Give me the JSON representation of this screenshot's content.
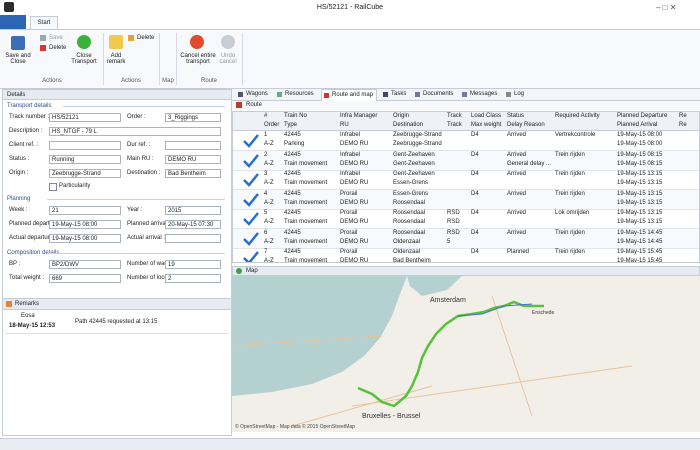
{
  "window": {
    "title": "HS/52121 - RailCube"
  },
  "ribbon": {
    "tab": "Start",
    "groups": [
      {
        "label": "Actions",
        "buttons": [
          "Save and Close",
          "Save",
          "Delete",
          "Close Transport"
        ]
      },
      {
        "label": "Actions",
        "buttons": [
          "Add remark",
          "Delete"
        ]
      },
      {
        "label": "Map"
      },
      {
        "label": "Route",
        "buttons": [
          "Cancel entire transport",
          "Undo cancel"
        ]
      }
    ]
  },
  "details": {
    "title": "Details",
    "sections": [
      {
        "title": "Transport details",
        "rows": [
          [
            {
              "label": "Track number :",
              "value": "HS/52121"
            },
            {
              "label": "Order :",
              "value": "3_Riggings"
            }
          ],
          [
            {
              "label": "Description :",
              "value": "HS_NTGF - 79 L"
            }
          ],
          [
            {
              "label": "Client ref. :"
            },
            {
              "label": "Dur ref. :"
            }
          ],
          [
            {
              "label": "Status :",
              "value": "Running"
            },
            {
              "label": "Main RU :",
              "value": "DEMO RU"
            }
          ],
          [
            {
              "label": "Origin :",
              "value": "Zeebrugge-Strand"
            },
            {
              "label": "Destination :",
              "value": "Bad Bentheim"
            }
          ]
        ],
        "checkbox": "Particularity"
      },
      {
        "title": "Planning",
        "rows": [
          [
            {
              "label": "Week :",
              "value": "21"
            },
            {
              "label": "Year :",
              "value": "2015"
            }
          ],
          [
            {
              "label": "Planned departure :",
              "value": "19-May-15 08:00"
            },
            {
              "label": "Planned arrival :",
              "value": "20-May-15 07:30"
            }
          ],
          [
            {
              "label": "Actual departure :",
              "value": "19-May-15 08:00"
            },
            {
              "label": "Actual arrival :"
            }
          ]
        ]
      },
      {
        "title": "Composition details",
        "rows": [
          [
            {
              "label": "BP :",
              "value": "BP2/DWV"
            },
            {
              "label": "Number of wagons :",
              "value": "19"
            }
          ],
          [
            {
              "label": "Total weight :",
              "value": "669"
            },
            {
              "label": "Number of locomotives :",
              "value": "2"
            }
          ]
        ]
      }
    ]
  },
  "remarks": {
    "title": "Remarks",
    "author": "Eosa",
    "date": "18-May-15 12:53",
    "text": "Path 42445 requested at 13:15"
  },
  "tabs": [
    "Wagons",
    "Resources",
    "Route and map",
    "Tasks",
    "Documents",
    "Messages",
    "Log"
  ],
  "route": {
    "title": "Route",
    "header1": [
      "#",
      "Train No",
      "Infra Manager",
      "Origin",
      "Track",
      "Load Class",
      "Status",
      "Required Activity",
      "Planned Departure",
      "Re"
    ],
    "header2": [
      "Order",
      "Type",
      "RU",
      "Destination",
      "Track",
      "Max weight",
      "Delay Reason",
      null,
      "Planned Arrival",
      "Re"
    ],
    "rows": [
      [
        [
          "1",
          "42445",
          "Infrabel",
          "Zeebrugge-Strand",
          null,
          "D4",
          "Arrived",
          "Vertrekcontrole",
          "19-May-15 08:00"
        ],
        [
          "A-Z",
          "Parking",
          "DEMO RU",
          "Zeebrugge-Strand",
          null,
          null,
          null,
          null,
          "19-May-15 08:00"
        ]
      ],
      [
        [
          "2",
          "42445",
          "Infrabel",
          "Gent-Zeehaven",
          null,
          "D4",
          "Arrived",
          "Trein rijden",
          "19-May-15 08:15"
        ],
        [
          "A-Z",
          "Train movement",
          "DEMO RU",
          "Gent-Zeehaven",
          null,
          null,
          "General delay ...",
          null,
          "19-May-15 08:15"
        ]
      ],
      [
        [
          "3",
          "42445",
          "Infrabel",
          "Gent-Zeehaven",
          null,
          "D4",
          "Arrived",
          "Trein rijden",
          "19-May-15 13:15"
        ],
        [
          "A-Z",
          "Train movement",
          "DEMO RU",
          "Essen-Grens",
          null,
          null,
          null,
          null,
          "19-May-15 13:15"
        ]
      ],
      [
        [
          "4",
          "42445",
          "Prorail",
          "Essen-Grens",
          null,
          "D4",
          "Arrived",
          "Trein rijden",
          "19-May-15 13:15"
        ],
        [
          "A-Z",
          "Train movement",
          "DEMO RU",
          "Roosendaal",
          null,
          null,
          null,
          null,
          "19-May-15 13:15"
        ]
      ],
      [
        [
          "5",
          "42445",
          "Prorail",
          "Roosendaal",
          "RSD",
          "D4",
          "Arrived",
          "Lok omrijden",
          "19-May-15 13:15"
        ],
        [
          "A-Z",
          "Train movement",
          "DEMO RU",
          "Roosendaal",
          "RSD",
          null,
          null,
          null,
          "19-May-15 13:15"
        ]
      ],
      [
        [
          "6",
          "42445",
          "Prorail",
          "Roosendaal",
          "RSD",
          "D4",
          "Arrived",
          "Trein rijden",
          "19-May-15 14:45"
        ],
        [
          "A-Z",
          "Train movement",
          "DEMO RU",
          "Oldenzaal",
          "5",
          null,
          null,
          null,
          "19-May-15 14:45"
        ]
      ],
      [
        [
          "7",
          "42445",
          "Prorail",
          "Oldenzaal",
          null,
          "D4",
          "Planned",
          "Trein rijden",
          "19-May-15 15:45"
        ],
        [
          "A-Z",
          "Train movement",
          "DEMO RU",
          "Bad Bentheim",
          null,
          null,
          null,
          null,
          "19-May-15 15:45"
        ]
      ]
    ]
  },
  "map": {
    "title": "Map",
    "places": [
      "Amsterdam",
      "Bruxelles - Brussel",
      "Enschede"
    ],
    "attribution": "© OpenStreetMap - Map data © 2015 OpenStreetMap"
  }
}
